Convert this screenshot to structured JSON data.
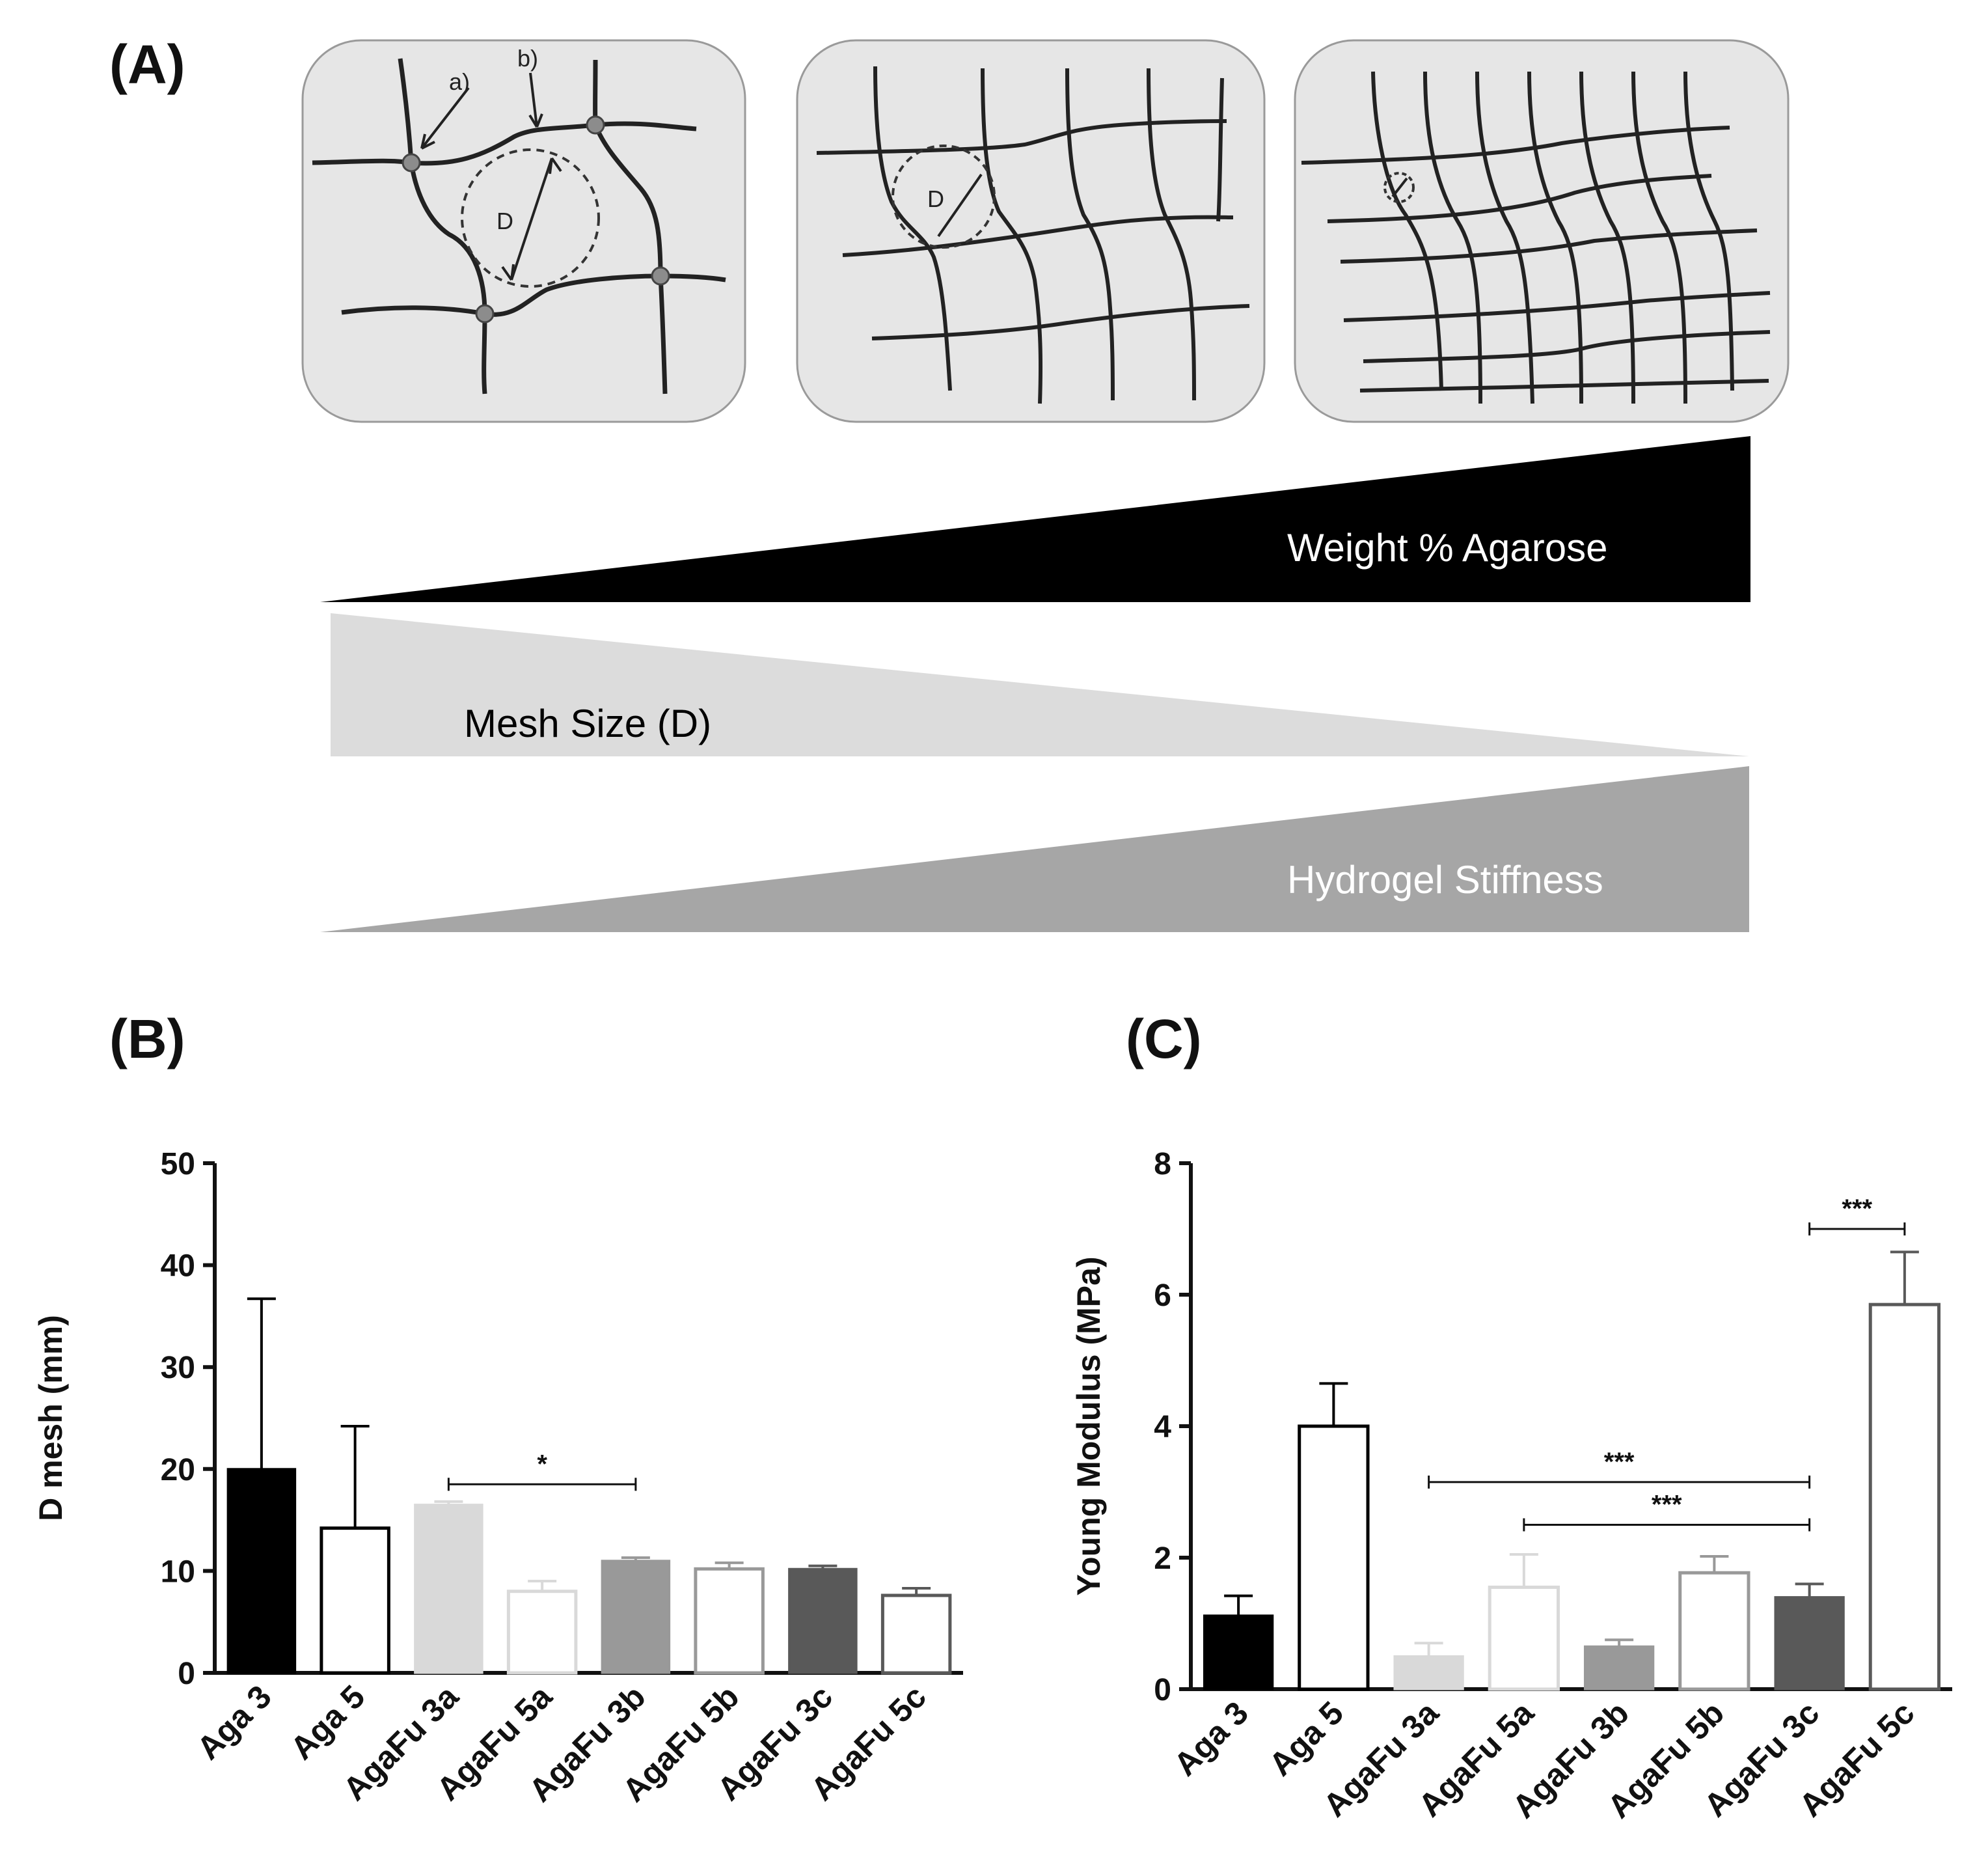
{
  "panels": {
    "a_label": "(A)",
    "b_label": "(B)",
    "c_label": "(C)"
  },
  "schematic": {
    "annotation_a": "a)",
    "annotation_b": "b)",
    "mesh_label": "D",
    "weight_text": "Weight %  Agarose",
    "mesh_text": "Mesh Size (D)",
    "stiffness_text": "Hydrogel Stiffness",
    "colors": {
      "weight": "#000000",
      "mesh": "#dcdcdc",
      "stiffness": "#a6a6a6",
      "box": "#e6e6e6"
    }
  },
  "chart_data": [
    {
      "type": "bar",
      "panel": "B",
      "title": "",
      "xlabel": "",
      "ylabel": "D mesh (mm)",
      "ylim": [
        0,
        50
      ],
      "yticks": [
        0,
        10,
        20,
        30,
        40,
        50
      ],
      "categories": [
        "Aga 3",
        "Aga 5",
        "AgaFu 3a",
        "AgaFu 5a",
        "AgaFu 3b",
        "AgaFu 5b",
        "AgaFu 3c",
        "AgaFu 5c"
      ],
      "values": [
        20,
        14.2,
        16.5,
        8,
        11,
        10.2,
        10.2,
        7.6
      ],
      "errors": [
        16.7,
        10,
        0.3,
        1,
        0.3,
        0.6,
        0.3,
        0.7
      ],
      "fills": [
        "#000000",
        "#ffffff",
        "#d9d9d9",
        "#ffffff",
        "#999999",
        "#ffffff",
        "#595959",
        "#ffffff"
      ],
      "strokes": [
        "#000000",
        "#000000",
        "#d9d9d9",
        "#d9d9d9",
        "#999999",
        "#999999",
        "#595959",
        "#595959"
      ],
      "significance": [
        {
          "from": 2,
          "to": 4,
          "level": 18.5,
          "label": "*"
        }
      ]
    },
    {
      "type": "bar",
      "panel": "C",
      "title": "",
      "xlabel": "",
      "ylabel": "Young Modulus (MPa)",
      "ylim": [
        0,
        8
      ],
      "yticks": [
        0,
        2,
        4,
        6,
        8
      ],
      "categories": [
        "Aga 3",
        "Aga 5",
        "AgaFu 3a",
        "AgaFu 5a",
        "AgaFu 3b",
        "AgaFu 5b",
        "AgaFu 3c",
        "AgaFu 5c"
      ],
      "values": [
        1.12,
        4,
        0.5,
        1.55,
        0.65,
        1.77,
        1.4,
        5.85
      ],
      "errors": [
        0.3,
        0.65,
        0.2,
        0.5,
        0.1,
        0.25,
        0.2,
        0.8
      ],
      "fills": [
        "#000000",
        "#ffffff",
        "#d9d9d9",
        "#ffffff",
        "#999999",
        "#ffffff",
        "#595959",
        "#ffffff"
      ],
      "strokes": [
        "#000000",
        "#000000",
        "#d9d9d9",
        "#d9d9d9",
        "#999999",
        "#999999",
        "#595959",
        "#595959"
      ],
      "significance": [
        {
          "from": 2,
          "to": 6,
          "level": 3.15,
          "label": "***"
        },
        {
          "from": 3,
          "to": 6,
          "level": 2.5,
          "label": "***"
        },
        {
          "from": 6,
          "to": 7,
          "level": 7.0,
          "label": "***"
        }
      ]
    }
  ]
}
